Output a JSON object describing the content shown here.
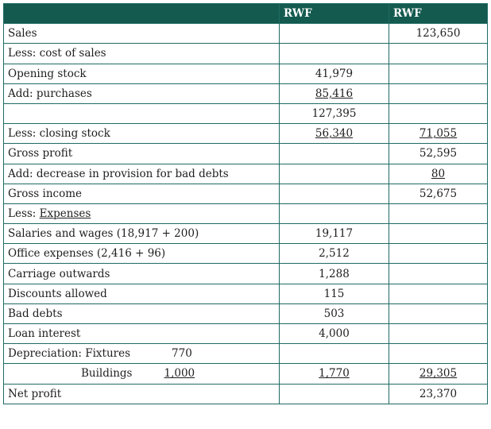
{
  "header": {
    "col_desc": "",
    "col_mid": "RWF",
    "col_right": "RWF"
  },
  "rows": {
    "sales": {
      "label": "Sales",
      "mid": "",
      "right": "123,650"
    },
    "less_cost": {
      "label": "Less: cost of sales",
      "mid": "",
      "right": ""
    },
    "opening": {
      "label": "Opening stock",
      "mid": "41,979",
      "right": ""
    },
    "purchases": {
      "label": "Add: purchases",
      "mid": "85,416",
      "right": ""
    },
    "subtotal": {
      "label": "",
      "mid": "127,395",
      "right": ""
    },
    "closing": {
      "label": "Less: closing stock",
      "mid": "56,340",
      "right": "71,055"
    },
    "gross_profit": {
      "label": "Gross profit",
      "mid": "",
      "right": "52,595"
    },
    "provision": {
      "label": "Add: decrease in provision for bad debts",
      "mid": "",
      "right": "80"
    },
    "gross_income": {
      "label": "Gross income",
      "mid": "",
      "right": "52,675"
    },
    "expenses": {
      "prefix": "Less: ",
      "label": "Expenses",
      "mid": "",
      "right": ""
    },
    "salaries": {
      "label": "Salaries and wages (18,917 + 200)",
      "mid": "19,117",
      "right": ""
    },
    "office": {
      "label": "Office expenses (2,416 + 96)",
      "mid": "2,512",
      "right": ""
    },
    "carriage": {
      "label": "Carriage outwards",
      "mid": "1,288",
      "right": ""
    },
    "discounts": {
      "label": "Discounts allowed",
      "mid": "115",
      "right": ""
    },
    "bad_debts": {
      "label": "Bad debts",
      "mid": "503",
      "right": ""
    },
    "loan": {
      "label": "Loan interest",
      "mid": "4,000",
      "right": ""
    },
    "depreciation": {
      "label": "Depreciation: Fixtures",
      "sub_amount": "770",
      "mid": "",
      "right": ""
    },
    "buildings": {
      "label": "Buildings",
      "sub_amount": "1,000",
      "mid": "1,770",
      "right": "29,305"
    },
    "net_profit": {
      "label": "Net profit",
      "mid": "",
      "right": "23,370"
    }
  }
}
